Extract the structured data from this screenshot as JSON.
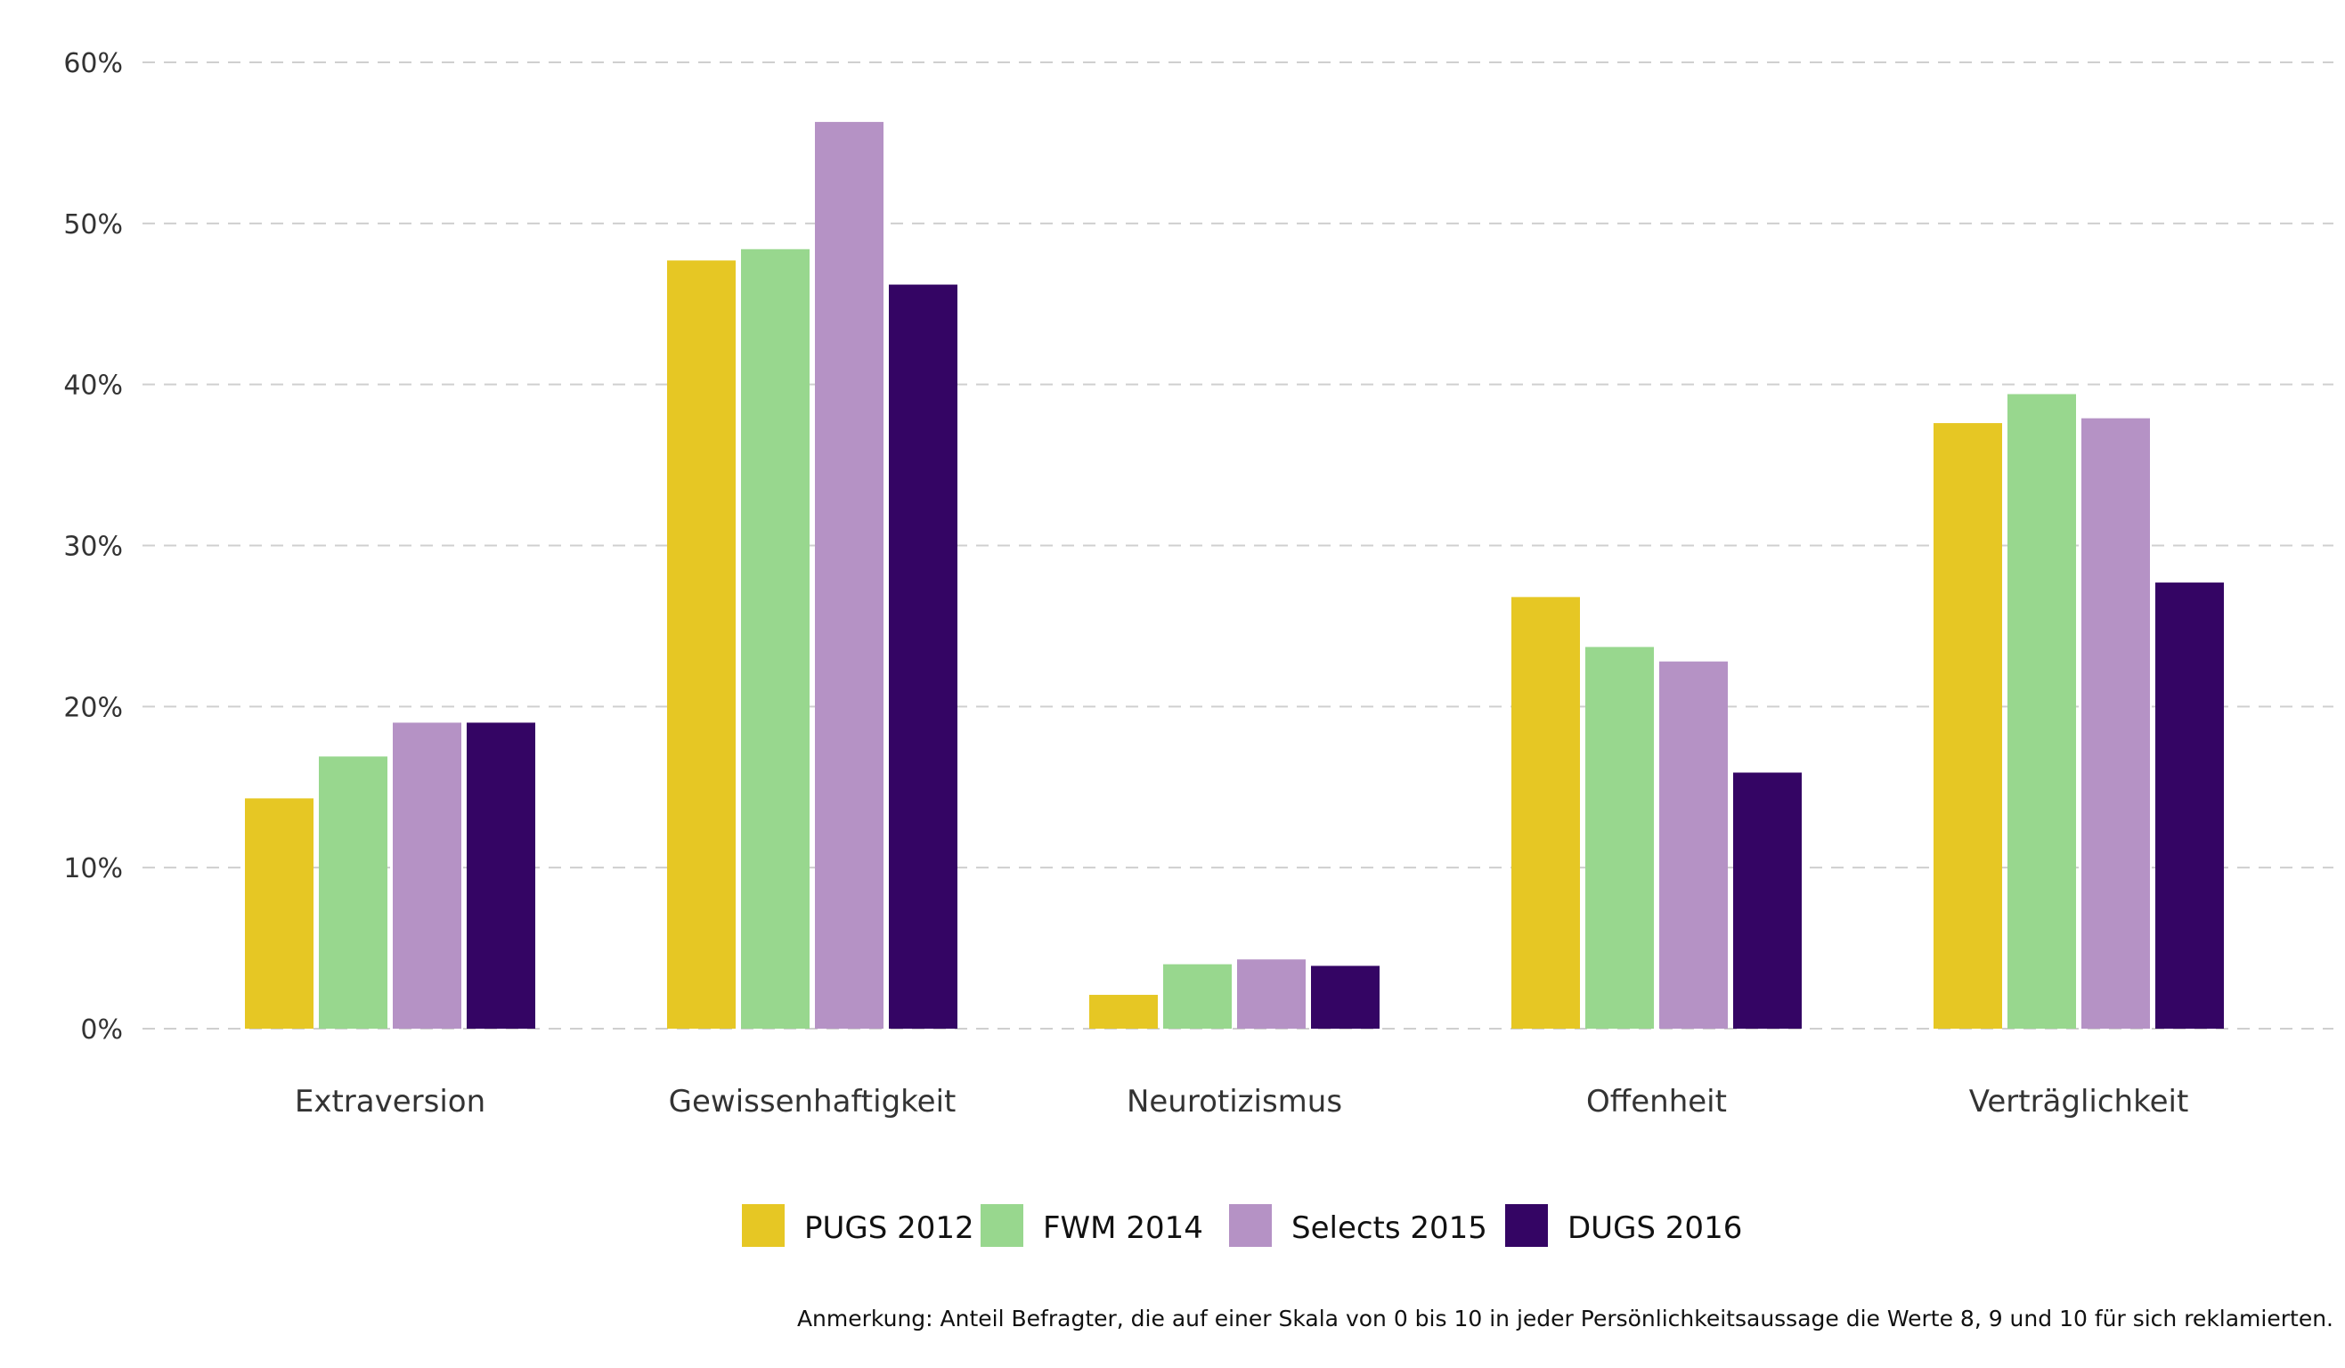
{
  "chart_data": {
    "type": "bar",
    "categories": [
      "Extraversion",
      "Gewissenhaftigkeit",
      "Neurotizismus",
      "Offenheit",
      "Verträglichkeit"
    ],
    "series": [
      {
        "name": "PUGS 2012",
        "color": "#E6C724",
        "values": [
          14.3,
          47.7,
          2.1,
          26.8,
          37.6
        ]
      },
      {
        "name": "FWM 2014",
        "color": "#98D78E",
        "values": [
          16.9,
          48.4,
          4.0,
          23.7,
          39.4
        ]
      },
      {
        "name": "Selects 2015",
        "color": "#B592C5",
        "values": [
          19.0,
          56.3,
          4.3,
          22.8,
          37.9
        ]
      },
      {
        "name": "DUGS 2016",
        "color": "#340564",
        "values": [
          19.0,
          46.2,
          3.9,
          15.9,
          27.7
        ]
      }
    ],
    "yticks": [
      "0%",
      "10%",
      "20%",
      "30%",
      "40%",
      "50%",
      "60%"
    ],
    "ylim": [
      0,
      60
    ],
    "grid": true,
    "legend_position": "bottom-center",
    "note": "Anmerkung: Anteil Befragter, die auf einer Skala von 0 bis 10 in jeder Persönlichkeitsaussage die Werte 8, 9 und 10 für sich reklamierten."
  }
}
